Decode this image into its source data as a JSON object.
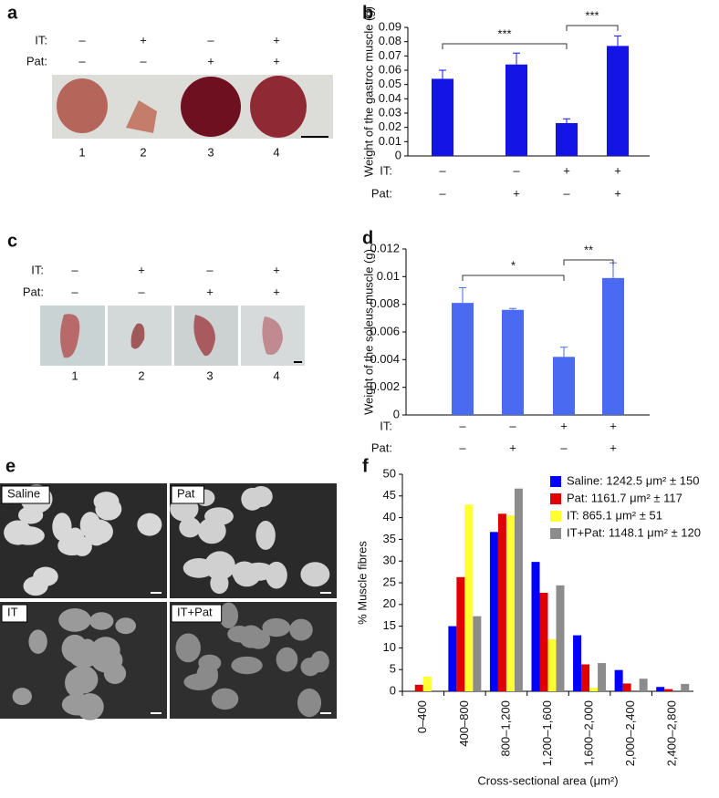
{
  "image_panels": [
    {
      "letter": "a",
      "rows": [
        {
          "label": "IT:",
          "signs": [
            "–",
            "+",
            "–",
            "+"
          ]
        },
        {
          "label": "Pat:",
          "signs": [
            "–",
            "–",
            "+",
            "+"
          ]
        }
      ],
      "lanes": [
        "1",
        "2",
        "3",
        "4"
      ]
    },
    {
      "letter": "c",
      "rows": [
        {
          "label": "IT:",
          "signs": [
            "–",
            "+",
            "–",
            "+"
          ]
        },
        {
          "label": "Pat:",
          "signs": [
            "–",
            "–",
            "+",
            "+"
          ]
        }
      ],
      "lanes": [
        "1",
        "2",
        "3",
        "4"
      ]
    },
    {
      "letter": "e",
      "tiles": [
        "Saline",
        "Pat",
        "IT",
        "IT+Pat"
      ]
    }
  ],
  "chart_data": [
    {
      "panel": "b",
      "type": "bar",
      "y_label": "Weight of the gastroc muscle (g)",
      "values": [
        0.054,
        0.064,
        0.023,
        0.077
      ],
      "errors": [
        0.006,
        0.008,
        0.003,
        0.007
      ],
      "color": "#1414e6",
      "conditions": [
        {
          "label": "IT:",
          "signs": [
            "–",
            "–",
            "+",
            "+"
          ]
        },
        {
          "label": "Pat:",
          "signs": [
            "–",
            "+",
            "–",
            "+"
          ]
        }
      ],
      "annotations": [
        "***",
        "***"
      ],
      "ylim": [
        0,
        0.09
      ],
      "yticks": [
        0,
        0.01,
        0.02,
        0.03,
        0.04,
        0.05,
        0.06,
        0.07,
        0.08,
        0.09
      ]
    },
    {
      "panel": "d",
      "type": "bar",
      "y_label": "Weight of the soleus muscle (g)",
      "values": [
        0.0081,
        0.0076,
        0.0042,
        0.0099
      ],
      "errors": [
        0.0011,
        0.0001,
        0.0007,
        0.0011
      ],
      "color": "#4a6af2",
      "conditions": [
        {
          "label": "IT:",
          "signs": [
            "–",
            "–",
            "+",
            "+"
          ]
        },
        {
          "label": "Pat:",
          "signs": [
            "–",
            "+",
            "–",
            "+"
          ]
        }
      ],
      "annotations": [
        "*",
        "**"
      ],
      "ylim": [
        0,
        0.012
      ],
      "yticks": [
        0,
        0.002,
        0.004,
        0.006,
        0.008,
        0.01,
        0.012
      ]
    },
    {
      "panel": "f",
      "type": "grouped_bar",
      "y_label": "% Muscle fibres",
      "x_label": "Cross-sectional area (μm²)",
      "categories": [
        "0–400",
        "400–800",
        "800–1,200",
        "1,200–1,600",
        "1,600–2,000",
        "2,000–2,400",
        "2,400–2,800"
      ],
      "series": [
        {
          "name": "Saline: 1242.5 μm² ± 150",
          "color": "#0000ff",
          "values": [
            0,
            15,
            36.7,
            29.8,
            12.9,
            4.9,
            1
          ]
        },
        {
          "name": "Pat: 1161.7 μm² ± 117",
          "color": "#e00000",
          "values": [
            1.5,
            26.3,
            40.9,
            22.7,
            6.2,
            1.8,
            0.5
          ]
        },
        {
          "name": "IT: 865.1 μm² ± 51",
          "color": "#ffff33",
          "values": [
            3.4,
            43,
            40.5,
            12,
            0.8,
            0,
            0
          ]
        },
        {
          "name": "IT+Pat: 1148.1 μm² ± 120",
          "color": "#8c8c8c",
          "values": [
            0,
            17.3,
            46.7,
            24.4,
            6.5,
            2.9,
            1.7
          ]
        }
      ],
      "ylim": [
        0,
        50
      ],
      "yticks": [
        0,
        5,
        10,
        15,
        20,
        25,
        30,
        35,
        40,
        45,
        50
      ]
    }
  ]
}
